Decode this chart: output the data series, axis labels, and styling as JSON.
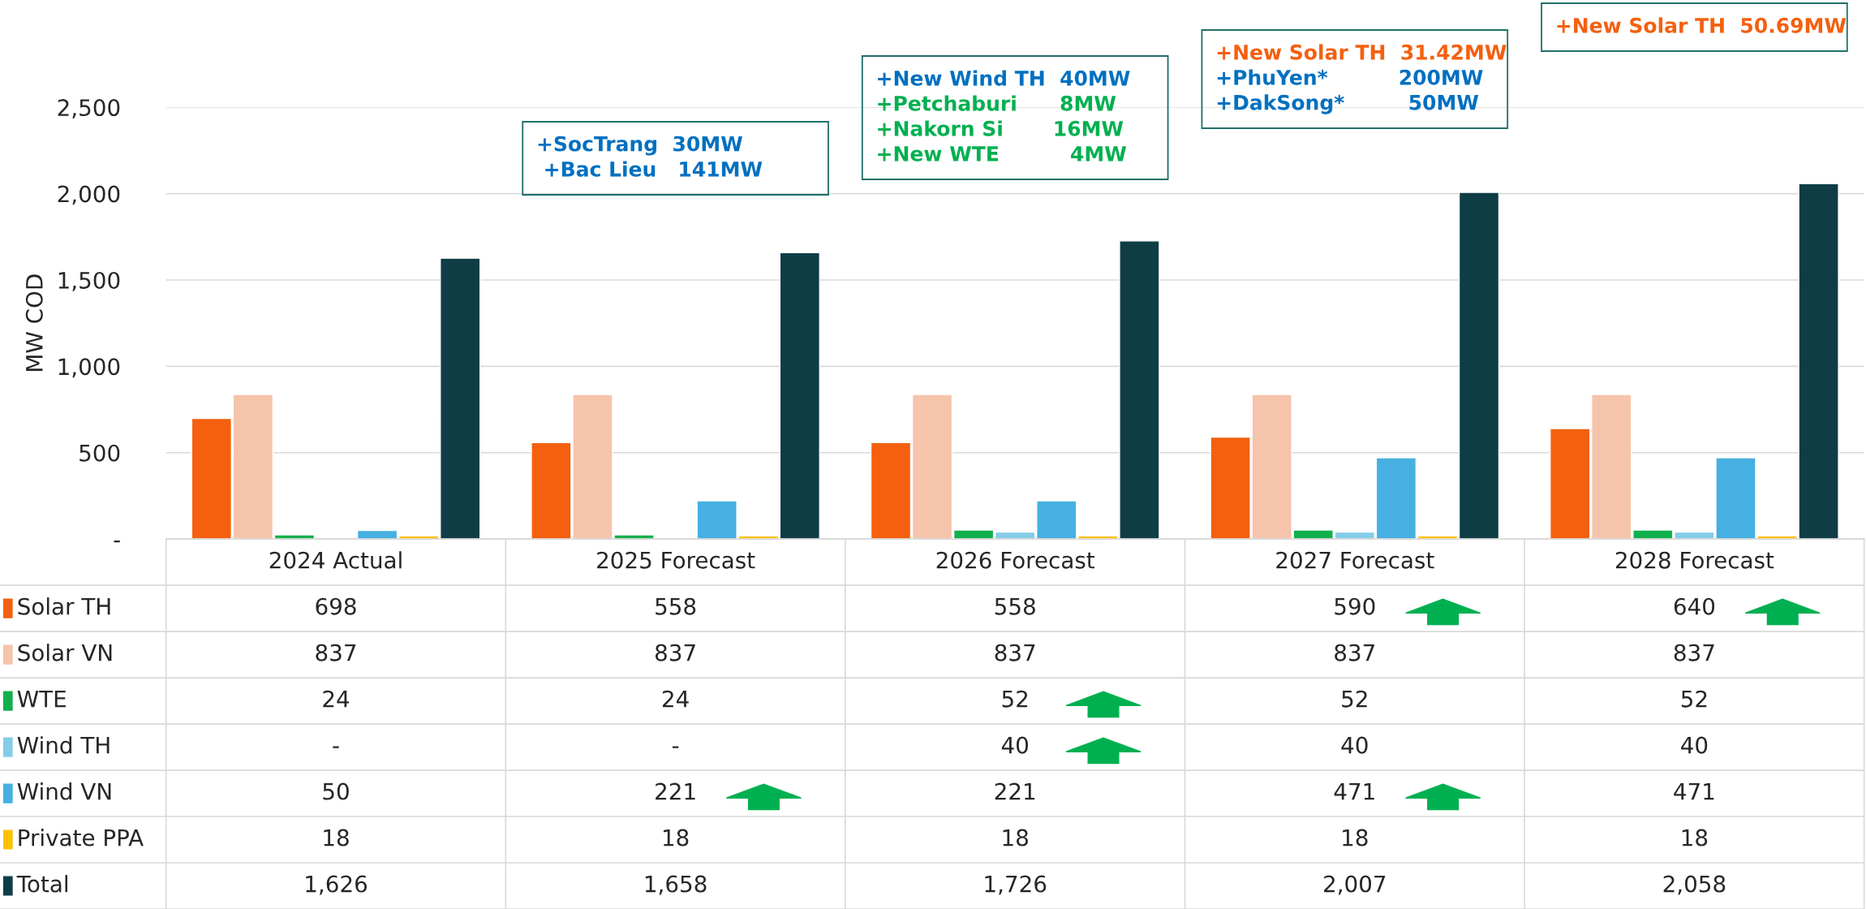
{
  "chart_data": {
    "type": "bar",
    "ylabel": "MW COD",
    "categories": [
      "2024 Actual",
      "2025 Forecast",
      "2026 Forecast",
      "2027 Forecast",
      "2028 Forecast"
    ],
    "series": [
      {
        "name": "Solar TH",
        "color": "#f4600f",
        "values": [
          698,
          558,
          558,
          590,
          640
        ]
      },
      {
        "name": "Solar VN",
        "color": "#f5c4ab",
        "values": [
          837,
          837,
          837,
          837,
          837
        ]
      },
      {
        "name": "WTE",
        "color": "#12b04c",
        "values": [
          24,
          24,
          52,
          52,
          52
        ]
      },
      {
        "name": "Wind TH",
        "color": "#84cce8",
        "values": [
          null,
          null,
          40,
          40,
          40
        ],
        "value_labels": [
          "-",
          "-",
          "40",
          "40",
          "40"
        ]
      },
      {
        "name": "Wind VN",
        "color": "#45b0e1",
        "values": [
          50,
          221,
          221,
          471,
          471
        ]
      },
      {
        "name": "Private PPA",
        "color": "#ffc000",
        "values": [
          18,
          18,
          18,
          18,
          18
        ]
      },
      {
        "name": "Total",
        "color": "#0f3d45",
        "values": [
          1626,
          1658,
          1726,
          2007,
          2058
        ],
        "value_labels": [
          "1,626",
          "1,658",
          "1,726",
          "2,007",
          "2,058"
        ]
      }
    ],
    "ylim": [
      0,
      2500
    ],
    "yticks": [
      {
        "value": 0,
        "label": "-"
      },
      500,
      {
        "value": 1000,
        "label": "1,000"
      },
      {
        "value": 1500,
        "label": "1,500"
      },
      {
        "value": 2000,
        "label": "2,000"
      },
      {
        "value": 2500,
        "label": "2,500"
      }
    ],
    "grid": "y",
    "legend": "bottom left",
    "data_labels": true,
    "annotations": [
      "+SocTrang  30MW\n +Bac Lieu   141MW",
      "+New Wind TH  40MW\n+Petchaburi      8MW\n+Nakorn Si       16MW\n+New WTE          4MW",
      "+New Solar TH  31.42MW\n+PhuYen*          200MW\n+DakSong*         50MW",
      "+New Solar TH  50.69MW"
    ]
  }
}
